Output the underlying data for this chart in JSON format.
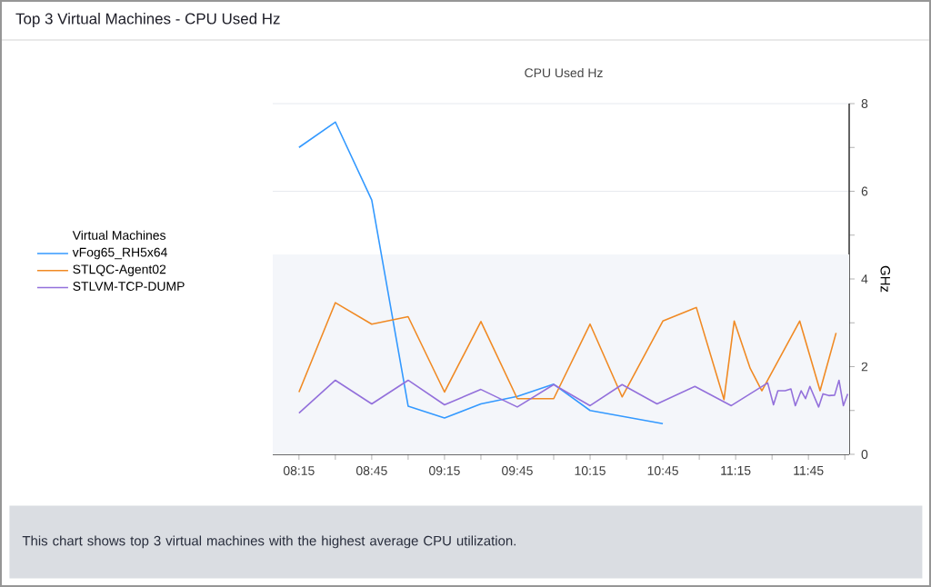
{
  "chart_data": {
    "type": "line",
    "title": "Top 3 Virtual Machines - CPU Used Hz",
    "subtitle": "CPU Used Hz",
    "y2label": "GHz",
    "legend_title": "Virtual Machines",
    "legend": "left",
    "grid": "y",
    "marker": "none",
    "line_style": "solid",
    "annotations": [
      "This chart shows top 3 virtual machines with the highest average CPU utilization."
    ],
    "xlim": [
      8.07,
      12.03
    ],
    "xticks": [
      {
        "value": 8.25,
        "label": "08:15"
      },
      {
        "value": 8.5,
        "label": null
      },
      {
        "value": 8.75,
        "label": "08:45"
      },
      {
        "value": 9.0,
        "label": null
      },
      {
        "value": 9.25,
        "label": "09:15"
      },
      {
        "value": 9.5,
        "label": null
      },
      {
        "value": 9.75,
        "label": "09:45"
      },
      {
        "value": 10.0,
        "label": null
      },
      {
        "value": 10.25,
        "label": "10:15"
      },
      {
        "value": 10.5,
        "label": null
      },
      {
        "value": 10.75,
        "label": "10:45"
      },
      {
        "value": 11.0,
        "label": null
      },
      {
        "value": 11.25,
        "label": "11:15"
      },
      {
        "value": 11.5,
        "label": null
      },
      {
        "value": 11.75,
        "label": "11:45"
      },
      {
        "value": 12.0,
        "label": null
      }
    ],
    "y2lim": [
      0,
      8
    ],
    "y2ticks": [
      0,
      {
        "value": 1,
        "label": null
      },
      2,
      {
        "value": 3,
        "label": null
      },
      4,
      {
        "value": 5,
        "label": null
      },
      6,
      {
        "value": 7,
        "label": null
      },
      8
    ],
    "bands": [
      {
        "axis": "y2",
        "from": 0,
        "to": 4.56,
        "color": "#f4f6fa"
      }
    ],
    "series": [
      {
        "name": "vFog65_RH5x64",
        "color": "#3399ff",
        "axis": "y2",
        "x": [
          8.25,
          8.5,
          8.75,
          9.0,
          9.25,
          9.5,
          9.75,
          10.0,
          10.25,
          10.5,
          10.75
        ],
        "values": [
          7.0,
          7.58,
          5.8,
          1.1,
          0.83,
          1.15,
          1.32,
          1.6,
          1.0,
          0.85,
          0.7
        ]
      },
      {
        "name": "STLQC-Agent02",
        "color": "#f08a24",
        "axis": "y2",
        "x": [
          8.25,
          8.5,
          8.75,
          9.0,
          9.25,
          9.5,
          9.75,
          10.0,
          10.25,
          10.47,
          10.75,
          10.98,
          11.17,
          11.24,
          11.35,
          11.43,
          11.69,
          11.83,
          11.94
        ],
        "values": [
          1.42,
          3.46,
          2.97,
          3.14,
          1.42,
          3.03,
          1.27,
          1.27,
          2.97,
          1.31,
          3.04,
          3.35,
          1.25,
          3.04,
          1.96,
          1.45,
          3.04,
          1.45,
          2.77
        ]
      },
      {
        "name": "STLVM-TCP-DUMP",
        "color": "#9370db",
        "axis": "y2",
        "x": [
          8.25,
          8.5,
          8.75,
          9.0,
          9.25,
          9.5,
          9.75,
          10.0,
          10.25,
          10.47,
          10.71,
          10.97,
          11.22,
          11.47,
          11.51,
          11.54,
          11.59,
          11.63,
          11.66,
          11.7,
          11.73,
          11.76,
          11.82,
          11.85,
          11.89,
          11.93,
          11.96,
          11.99,
          12.02
        ],
        "values": [
          0.94,
          1.69,
          1.15,
          1.69,
          1.13,
          1.48,
          1.08,
          1.59,
          1.11,
          1.59,
          1.15,
          1.55,
          1.11,
          1.63,
          1.13,
          1.45,
          1.45,
          1.49,
          1.11,
          1.45,
          1.27,
          1.55,
          1.08,
          1.38,
          1.34,
          1.35,
          1.69,
          1.11,
          1.38
        ]
      }
    ]
  }
}
